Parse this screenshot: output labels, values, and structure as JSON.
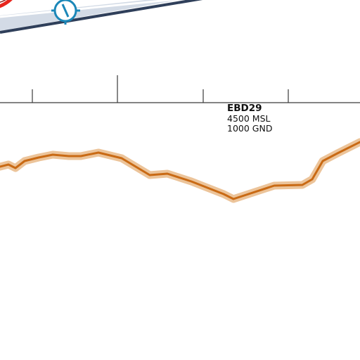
{
  "airspace": {
    "name": "EBD29",
    "upper_limit": "4500 MSL",
    "lower_limit": "1000 GND"
  },
  "colors": {
    "background": "#ffffff",
    "route_outer": "#2f3f5a",
    "route_band": "#d3dbe6",
    "route_highlight": "#e8261d",
    "waypoint": "#1b87b8",
    "axis": "#3a3a3a",
    "terrain_line": "#c96a14",
    "terrain_halo": "#ecc49a"
  },
  "icons": {
    "waypoint": "waypoint-marker-icon"
  }
}
